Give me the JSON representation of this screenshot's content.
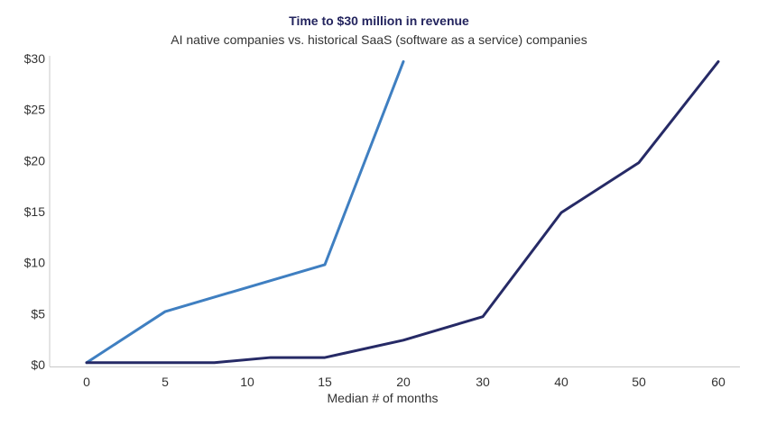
{
  "chart_data": {
    "type": "line",
    "title": "Time to $30 million in revenue",
    "subtitle": "AI native companies vs. historical SaaS (software as a service) companies",
    "xlabel": "Median # of months",
    "ylabel": "",
    "xlim": [
      -2,
      63
    ],
    "ylim": [
      0,
      30
    ],
    "x_ticks": [
      0,
      5,
      10,
      15,
      20,
      30,
      40,
      50,
      60
    ],
    "y_ticks": [
      0,
      5,
      10,
      15,
      20,
      25,
      30
    ],
    "y_tick_labels": [
      "$0",
      "$5",
      "$10",
      "$15",
      "$20",
      "$25",
      "$30"
    ],
    "x_axis_note": "axis is non-linear: 0–20 at 5-month steps, 20–60 at 10-month steps",
    "grid": false,
    "series": [
      {
        "color": "#3f7fc1",
        "points": [
          [
            0,
            0.2
          ],
          [
            5,
            5.2
          ],
          [
            15,
            9.8
          ],
          [
            20,
            29.7
          ]
        ]
      },
      {
        "color": "#262a66",
        "points": [
          [
            0,
            0.2
          ],
          [
            8,
            0.2
          ],
          [
            11.5,
            0.7
          ],
          [
            15,
            0.7
          ],
          [
            20,
            2.4
          ],
          [
            30,
            4.7
          ],
          [
            40,
            14.9
          ],
          [
            50,
            19.8
          ],
          [
            60,
            29.7
          ]
        ]
      }
    ]
  }
}
